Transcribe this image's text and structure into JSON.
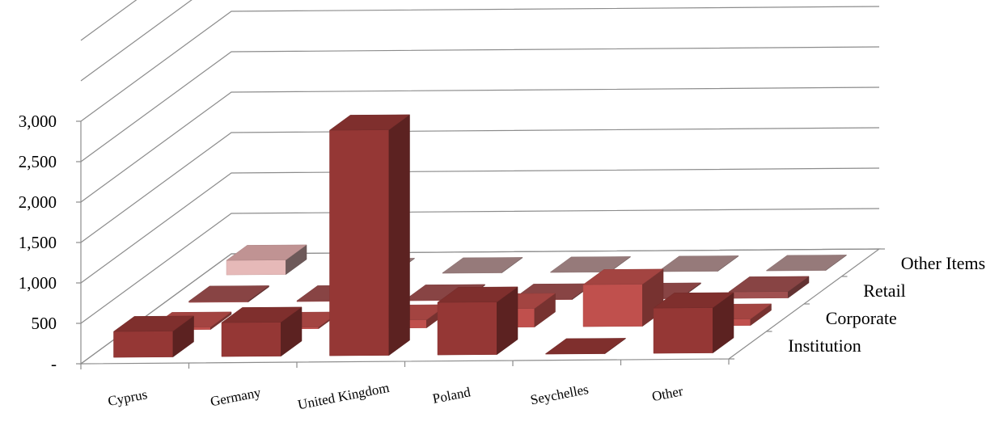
{
  "chart_data": {
    "type": "bar",
    "subtype": "3d-column",
    "title": "",
    "xlabel": "",
    "ylabel": "",
    "ylim": [
      0,
      3000
    ],
    "yticks": [
      "-",
      "500",
      "1,000",
      "1,500",
      "2,000",
      "2,500",
      "3,000"
    ],
    "ytick_values": [
      0,
      500,
      1000,
      1500,
      2000,
      2500,
      3000
    ],
    "grid": true,
    "categories": [
      "Cyprus",
      "Germany",
      "United Kingdom",
      "Poland",
      "Seychelles",
      "Other"
    ],
    "series": [
      {
        "name": "Institution",
        "color": "#953735",
        "values": [
          320,
          420,
          2790,
          650,
          5,
          560
        ]
      },
      {
        "name": "Corporate",
        "color": "#c0504d",
        "values": [
          30,
          20,
          100,
          230,
          520,
          80
        ]
      },
      {
        "name": "Retail",
        "color": "#a05050",
        "values": [
          15,
          10,
          10,
          10,
          10,
          80
        ]
      },
      {
        "name": "Other Items",
        "color": "#b09090",
        "values": [
          180,
          5,
          5,
          5,
          5,
          5
        ]
      }
    ]
  }
}
